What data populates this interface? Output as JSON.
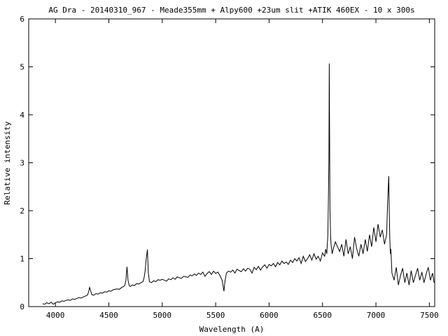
{
  "chart_data": {
    "type": "line",
    "title": "AG Dra - 20140310_967 - Meade355mm + Alpy600 +23um slit +ATIK 460EX - 10 x 300s",
    "xlabel": "Wavelength (A)",
    "ylabel": "Relative intensity",
    "xlim": [
      3750,
      7550
    ],
    "ylim": [
      0,
      6
    ],
    "x_ticks": [
      4000,
      4500,
      5000,
      5500,
      6000,
      6500,
      7000,
      7500
    ],
    "y_ticks": [
      0,
      1,
      2,
      3,
      4,
      5,
      6
    ],
    "grid": false,
    "legend": "none",
    "line_color": "#000000",
    "series": [
      {
        "x": [
          3880,
          3900,
          3920,
          3940,
          3960,
          3980,
          4000,
          4020,
          4040,
          4060,
          4080,
          4100,
          4120,
          4140,
          4160,
          4180,
          4200,
          4220,
          4240,
          4260,
          4280,
          4300,
          4310,
          4320,
          4330,
          4340,
          4360,
          4380,
          4400,
          4420,
          4440,
          4460,
          4480,
          4500,
          4520,
          4540,
          4560,
          4580,
          4600,
          4620,
          4640,
          4650,
          4660,
          4670,
          4680,
          4690,
          4700,
          4720,
          4740,
          4760,
          4780,
          4800,
          4820,
          4830,
          4840,
          4850,
          4861,
          4870,
          4880,
          4900,
          4920,
          4940,
          4960,
          4980,
          5000,
          5020,
          5040,
          5060,
          5080,
          5100,
          5120,
          5140,
          5160,
          5180,
          5200,
          5220,
          5240,
          5260,
          5280,
          5300,
          5320,
          5340,
          5360,
          5380,
          5400,
          5420,
          5440,
          5460,
          5480,
          5500,
          5520,
          5540,
          5560,
          5570,
          5577,
          5585,
          5600,
          5620,
          5640,
          5660,
          5680,
          5700,
          5720,
          5740,
          5760,
          5780,
          5800,
          5820,
          5840,
          5860,
          5880,
          5900,
          5920,
          5940,
          5960,
          5980,
          6000,
          6020,
          6040,
          6060,
          6080,
          6100,
          6120,
          6140,
          6160,
          6180,
          6200,
          6220,
          6240,
          6260,
          6280,
          6300,
          6320,
          6340,
          6360,
          6380,
          6400,
          6420,
          6440,
          6460,
          6480,
          6500,
          6520,
          6530,
          6540,
          6545,
          6550,
          6555,
          6560,
          6563,
          6566,
          6570,
          6575,
          6580,
          6590,
          6600,
          6620,
          6640,
          6660,
          6680,
          6700,
          6720,
          6740,
          6760,
          6780,
          6800,
          6820,
          6840,
          6860,
          6880,
          6900,
          6920,
          6940,
          6960,
          6980,
          7000,
          7020,
          7040,
          7060,
          7080,
          7100,
          7110,
          7120,
          7125,
          7130,
          7135,
          7140,
          7150,
          7170,
          7190,
          7210,
          7230,
          7250,
          7270,
          7290,
          7310,
          7330,
          7350,
          7370,
          7390,
          7410,
          7430,
          7450,
          7470,
          7490,
          7510,
          7530,
          7545
        ],
        "y": [
          0.06,
          0.05,
          0.08,
          0.06,
          0.09,
          0.05,
          0.08,
          0.1,
          0.09,
          0.12,
          0.11,
          0.13,
          0.14,
          0.13,
          0.16,
          0.15,
          0.17,
          0.19,
          0.18,
          0.2,
          0.22,
          0.24,
          0.3,
          0.4,
          0.33,
          0.25,
          0.24,
          0.27,
          0.26,
          0.29,
          0.28,
          0.31,
          0.3,
          0.33,
          0.32,
          0.35,
          0.36,
          0.37,
          0.36,
          0.4,
          0.42,
          0.45,
          0.55,
          0.83,
          0.55,
          0.44,
          0.42,
          0.45,
          0.44,
          0.48,
          0.47,
          0.5,
          0.52,
          0.6,
          0.75,
          1.0,
          1.19,
          0.7,
          0.52,
          0.5,
          0.54,
          0.52,
          0.56,
          0.55,
          0.57,
          0.55,
          0.53,
          0.58,
          0.56,
          0.6,
          0.57,
          0.62,
          0.6,
          0.59,
          0.63,
          0.62,
          0.61,
          0.66,
          0.64,
          0.68,
          0.65,
          0.7,
          0.67,
          0.72,
          0.63,
          0.69,
          0.73,
          0.67,
          0.74,
          0.69,
          0.72,
          0.65,
          0.55,
          0.42,
          0.32,
          0.5,
          0.7,
          0.74,
          0.72,
          0.76,
          0.7,
          0.78,
          0.75,
          0.73,
          0.79,
          0.74,
          0.8,
          0.78,
          0.7,
          0.82,
          0.77,
          0.84,
          0.76,
          0.83,
          0.87,
          0.8,
          0.88,
          0.85,
          0.9,
          0.83,
          0.92,
          0.87,
          0.95,
          0.9,
          0.93,
          0.88,
          0.97,
          0.92,
          1.0,
          0.95,
          1.02,
          0.9,
          1.05,
          0.94,
          1.0,
          1.08,
          0.97,
          1.1,
          0.99,
          1.05,
          0.95,
          1.12,
          1.05,
          1.2,
          1.1,
          1.3,
          1.5,
          2.2,
          3.1,
          5.07,
          3.8,
          2.0,
          1.5,
          1.3,
          1.1,
          1.2,
          1.35,
          1.25,
          1.15,
          1.3,
          1.05,
          1.4,
          1.1,
          1.25,
          1.0,
          1.45,
          1.2,
          1.05,
          1.3,
          1.1,
          1.4,
          1.15,
          1.5,
          1.25,
          1.65,
          1.35,
          1.72,
          1.45,
          1.6,
          1.3,
          1.5,
          2.2,
          2.72,
          2.0,
          1.4,
          1.1,
          1.2,
          0.7,
          0.55,
          0.82,
          0.45,
          0.65,
          0.8,
          0.5,
          0.7,
          0.45,
          0.75,
          0.5,
          0.65,
          0.8,
          0.55,
          0.72,
          0.5,
          0.68,
          0.82,
          0.55,
          0.7,
          0.5
        ]
      }
    ]
  }
}
